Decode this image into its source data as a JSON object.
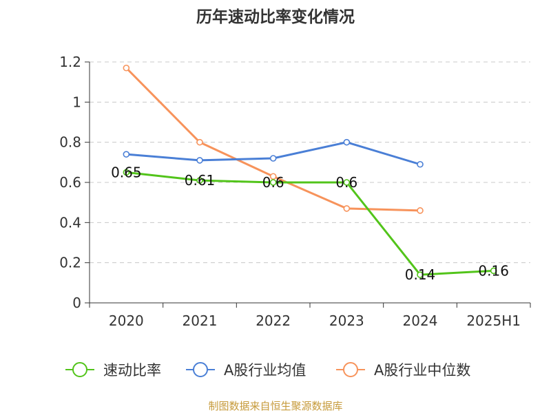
{
  "chart_data": {
    "type": "line",
    "title": "历年速动比率变化情况",
    "categories": [
      "2020",
      "2021",
      "2022",
      "2023",
      "2024",
      "2025H1"
    ],
    "ylim": [
      0,
      1.2
    ],
    "yticks": [
      "0",
      "0.2",
      "0.4",
      "0.6",
      "0.8",
      "1",
      "1.2"
    ],
    "grid": true,
    "series": [
      {
        "name": "速动比率",
        "color": "#52c41a",
        "values": [
          0.65,
          0.61,
          0.6,
          0.6,
          0.14,
          0.16
        ],
        "labels": [
          "0.65",
          "0.61",
          "0.6",
          "0.6",
          "0.14",
          "0.16"
        ]
      },
      {
        "name": "A股行业均值",
        "color": "#4a7fd6",
        "values": [
          0.74,
          0.71,
          0.72,
          0.8,
          0.69,
          null
        ]
      },
      {
        "name": "A股行业中位数",
        "color": "#f7935b",
        "values": [
          1.17,
          0.8,
          0.63,
          0.47,
          0.46,
          null
        ]
      }
    ],
    "legend_position": "bottom",
    "source": "制图数据来自恒生聚源数据库"
  }
}
